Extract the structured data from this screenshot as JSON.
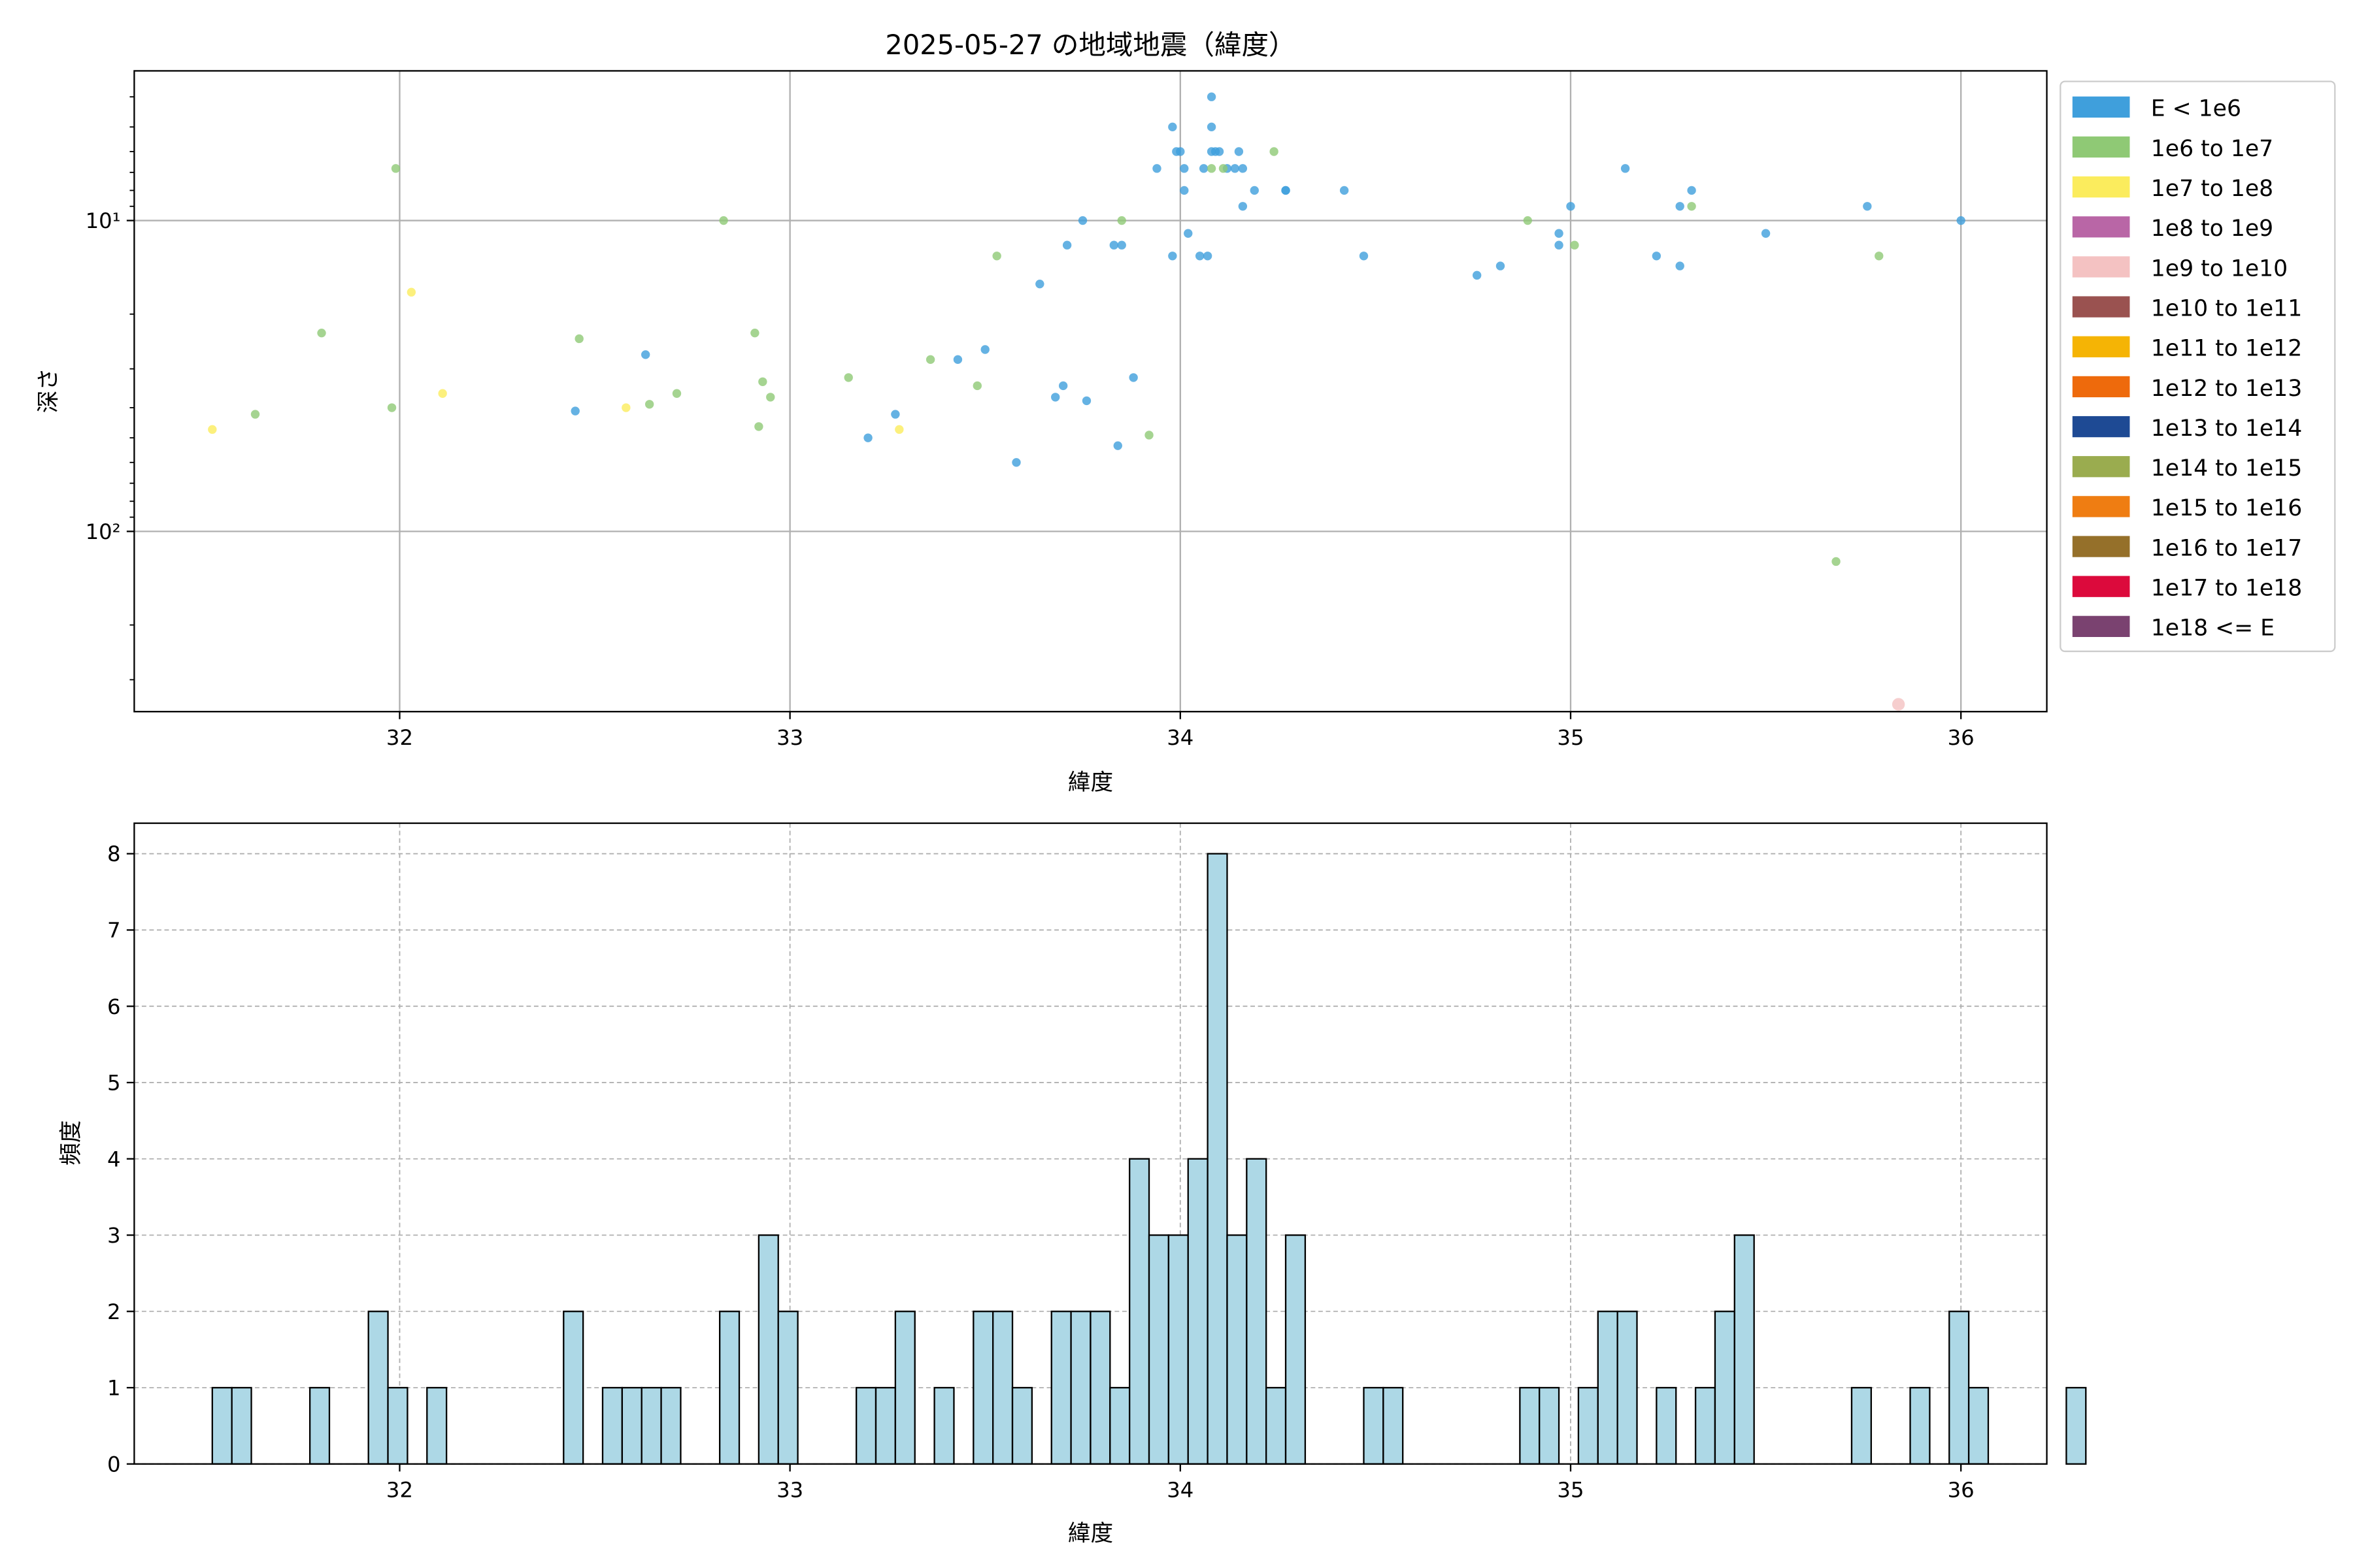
{
  "chart_data": [
    {
      "type": "scatter",
      "title": "2025-05-27 の地域地震（緯度）",
      "xlabel": "緯度",
      "ylabel": "深さ",
      "xlim": [
        31.32,
        36.22
      ],
      "ylim": [
        380,
        3.3
      ],
      "y_scale": "log-inverted",
      "grid": true,
      "x_ticks": [
        32,
        33,
        34,
        35,
        36
      ],
      "y_ticks": [
        10,
        100
      ],
      "y_tick_labels": [
        "10¹",
        "10²"
      ],
      "legend_position": "outside-right",
      "legend": [
        {
          "label": "E < 1e6",
          "color": "#3f9fdc"
        },
        {
          "label": "1e6 to 1e7",
          "color": "#8fc975"
        },
        {
          "label": "1e7 to 1e8",
          "color": "#fbec5d"
        },
        {
          "label": "1e8 to 1e9",
          "color": "#b966a6"
        },
        {
          "label": "1e9 to 1e10",
          "color": "#f4c2c2"
        },
        {
          "label": "1e10 to 1e11",
          "color": "#9a5250"
        },
        {
          "label": "1e11 to 1e12",
          "color": "#f5b405"
        },
        {
          "label": "1e12 to 1e13",
          "color": "#ee6a0c"
        },
        {
          "label": "1e13 to 1e14",
          "color": "#1e4a94"
        },
        {
          "label": "1e14 to 1e15",
          "color": "#9aac4f"
        },
        {
          "label": "1e15 to 1e16",
          "color": "#ef7d12"
        },
        {
          "label": "1e16 to 1e17",
          "color": "#95702a"
        },
        {
          "label": "1e17 to 1e18",
          "color": "#dc0a3c"
        },
        {
          "label": "1e18 <= E",
          "color": "#7a4270"
        }
      ],
      "series": [
        {
          "class": 0,
          "points": [
            [
              32.45,
              41
            ],
            [
              32.63,
              27
            ],
            [
              33.2,
              50
            ],
            [
              33.27,
              42
            ],
            [
              33.43,
              28
            ],
            [
              33.5,
              26
            ],
            [
              33.58,
              60
            ],
            [
              33.64,
              16
            ],
            [
              33.68,
              37
            ],
            [
              33.7,
              34
            ],
            [
              33.71,
              12
            ],
            [
              33.75,
              10
            ],
            [
              33.76,
              38
            ],
            [
              33.83,
              12
            ],
            [
              33.84,
              53
            ],
            [
              33.85,
              12
            ],
            [
              33.88,
              32
            ],
            [
              33.94,
              6.8
            ],
            [
              33.98,
              13
            ],
            [
              33.98,
              5
            ],
            [
              33.99,
              6
            ],
            [
              34.0,
              6
            ],
            [
              34.01,
              8
            ],
            [
              34.01,
              6.8
            ],
            [
              34.02,
              11
            ],
            [
              34.05,
              13
            ],
            [
              34.06,
              6.8
            ],
            [
              34.07,
              13
            ],
            [
              34.08,
              4
            ],
            [
              34.08,
              5
            ],
            [
              34.08,
              6
            ],
            [
              34.09,
              6
            ],
            [
              34.1,
              6
            ],
            [
              34.12,
              6.8
            ],
            [
              34.14,
              6.8
            ],
            [
              34.15,
              6
            ],
            [
              34.16,
              6.8
            ],
            [
              34.16,
              9
            ],
            [
              34.19,
              8
            ],
            [
              34.27,
              8
            ],
            [
              34.27,
              8
            ],
            [
              34.42,
              8
            ],
            [
              34.47,
              13
            ],
            [
              34.76,
              15
            ],
            [
              34.82,
              14
            ],
            [
              34.97,
              11
            ],
            [
              34.97,
              12
            ],
            [
              35.0,
              9
            ],
            [
              35.14,
              6.8
            ],
            [
              35.22,
              13
            ],
            [
              35.28,
              9
            ],
            [
              35.28,
              14
            ],
            [
              35.31,
              8
            ],
            [
              35.5,
              11
            ],
            [
              35.76,
              9
            ],
            [
              36.0,
              10
            ]
          ]
        },
        {
          "class": 1,
          "points": [
            [
              31.63,
              42
            ],
            [
              31.8,
              23
            ],
            [
              31.98,
              40
            ],
            [
              31.99,
              6.8
            ],
            [
              32.46,
              24
            ],
            [
              32.64,
              39
            ],
            [
              32.71,
              36
            ],
            [
              32.83,
              10
            ],
            [
              32.91,
              23
            ],
            [
              32.92,
              46
            ],
            [
              32.93,
              33
            ],
            [
              32.95,
              37
            ],
            [
              33.15,
              32
            ],
            [
              33.36,
              28
            ],
            [
              33.48,
              34
            ],
            [
              33.53,
              13
            ],
            [
              33.85,
              10
            ],
            [
              33.92,
              49
            ],
            [
              34.08,
              6.8
            ],
            [
              34.11,
              6.8
            ],
            [
              34.24,
              6
            ],
            [
              34.89,
              10
            ],
            [
              35.01,
              12
            ],
            [
              35.31,
              9
            ],
            [
              35.68,
              125
            ],
            [
              35.79,
              13
            ]
          ]
        },
        {
          "class": 2,
          "points": [
            [
              31.52,
              47
            ],
            [
              32.03,
              17
            ],
            [
              32.11,
              36
            ],
            [
              32.58,
              40
            ],
            [
              33.28,
              47
            ]
          ]
        },
        {
          "class": 4,
          "points": [
            [
              35.84,
              360
            ]
          ]
        }
      ]
    },
    {
      "type": "bar",
      "subtype": "histogram",
      "xlabel": "緯度",
      "ylabel": "頻度",
      "xlim": [
        31.32,
        36.22
      ],
      "ylim": [
        0,
        8.4
      ],
      "x_ticks": [
        32,
        33,
        34,
        35,
        36
      ],
      "y_ticks": [
        0,
        1,
        2,
        3,
        4,
        5,
        6,
        7,
        8
      ],
      "grid": "dashed",
      "bar_color": "#add8e6",
      "bar_edge_color": "#000000",
      "bin_start": 31.52,
      "bin_width": 0.05,
      "values": [
        1,
        1,
        0,
        0,
        0,
        1,
        0,
        0,
        2,
        1,
        0,
        1,
        0,
        0,
        0,
        0,
        0,
        0,
        2,
        0,
        1,
        1,
        1,
        1,
        0,
        0,
        2,
        0,
        3,
        2,
        0,
        0,
        0,
        1,
        1,
        2,
        0,
        1,
        0,
        2,
        2,
        1,
        0,
        2,
        2,
        2,
        1,
        4,
        3,
        3,
        4,
        8,
        3,
        4,
        1,
        3,
        0,
        0,
        0,
        1,
        1,
        0,
        0,
        0,
        0,
        0,
        0,
        1,
        1,
        0,
        1,
        2,
        2,
        0,
        1,
        0,
        1,
        2,
        3,
        0,
        0,
        0,
        0,
        0,
        1,
        0,
        0,
        1,
        0,
        2,
        1,
        0,
        0,
        0,
        0,
        1
      ]
    }
  ]
}
